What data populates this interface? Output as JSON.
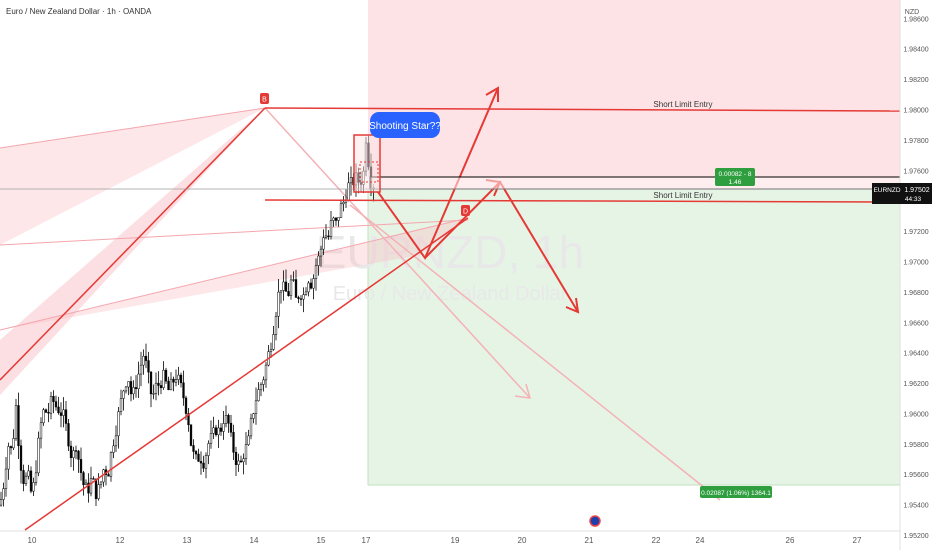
{
  "header": {
    "title": "Euro / New Zealand Dollar · 1h · OANDA"
  },
  "watermark": {
    "symbol": "EURNZD, 1h",
    "name": "Euro / New Zealand Dollar"
  },
  "price_axis": {
    "currency": "NZD",
    "current_symbol": "EURNZD",
    "current_price": "1.97502",
    "countdown": "44:33"
  },
  "annotations": {
    "callout": "Shooting Star??",
    "short_entry_top": "Short Limit Entry",
    "short_entry_bottom": "Short Limit Entry",
    "stop_line1": "0.00082 - 8",
    "stop_line2": "1.46",
    "target": "0.02087 (1.06%) 1364.1",
    "pattern_point_b": "B",
    "pattern_point_d": "D"
  },
  "colors": {
    "bull": "#000000",
    "red_line": "#e53935",
    "risk_zone": "#fde3e5",
    "reward_zone": "#e6f4e6",
    "badge_green": "#2e9e3f",
    "callout_blue": "#2962ff"
  },
  "chart_data": {
    "type": "candlestick",
    "symbol": "EURNZD",
    "timeframe": "1h",
    "y_ticks": [
      1.986,
      1.984,
      1.982,
      1.98,
      1.978,
      1.976,
      1.974,
      1.972,
      1.97,
      1.968,
      1.966,
      1.964,
      1.962,
      1.96,
      1.958,
      1.956,
      1.954,
      1.952
    ],
    "y_tick_labels": [
      "1.98600",
      "1.98400",
      "1.98200",
      "1.98000",
      "1.97800",
      "1.97600",
      "1.97400",
      "1.97200",
      "1.97000",
      "1.96800",
      "1.96600",
      "1.96400",
      "1.96200",
      "1.96000",
      "1.95800",
      "1.95600",
      "1.95400",
      "1.95200"
    ],
    "x_ticks": [
      "10",
      "12",
      "13",
      "14",
      "15",
      "17",
      "19",
      "20",
      "21",
      "22",
      "24",
      "26",
      "27"
    ],
    "ylim": [
      1.952,
      1.987
    ],
    "last_price": 1.97502,
    "levels": {
      "short_limit_entry_upper": 1.9803,
      "short_limit_entry_lower": 1.9743,
      "stop_zone_top": 1.9758,
      "stop_zone_bottom": 1.9749,
      "target": 1.9549
    },
    "price_path": [
      [
        0,
        1.954
      ],
      [
        4,
        1.9555
      ],
      [
        8,
        1.958
      ],
      [
        12,
        1.9575
      ],
      [
        16,
        1.9605
      ],
      [
        20,
        1.957
      ],
      [
        24,
        1.9555
      ],
      [
        28,
        1.956
      ],
      [
        32,
        1.9545
      ],
      [
        36,
        1.9565
      ],
      [
        40,
        1.959
      ],
      [
        44,
        1.9603
      ],
      [
        48,
        1.96
      ],
      [
        52,
        1.961
      ],
      [
        56,
        1.9605
      ],
      [
        60,
        1.9602
      ],
      [
        64,
        1.9598
      ],
      [
        68,
        1.9585
      ],
      [
        72,
        1.957
      ],
      [
        76,
        1.958
      ],
      [
        80,
        1.9565
      ],
      [
        84,
        1.9552
      ],
      [
        88,
        1.955
      ],
      [
        92,
        1.9558
      ],
      [
        96,
        1.9548
      ],
      [
        100,
        1.9552
      ],
      [
        104,
        1.9565
      ],
      [
        108,
        1.956
      ],
      [
        112,
        1.9578
      ],
      [
        116,
        1.959
      ],
      [
        120,
        1.9605
      ],
      [
        124,
        1.9618
      ],
      [
        128,
        1.9625
      ],
      [
        132,
        1.961
      ],
      [
        136,
        1.962
      ],
      [
        140,
        1.963
      ],
      [
        144,
        1.964
      ],
      [
        148,
        1.9625
      ],
      [
        152,
        1.961
      ],
      [
        156,
        1.9618
      ],
      [
        160,
        1.962
      ],
      [
        164,
        1.9625
      ],
      [
        168,
        1.9615
      ],
      [
        172,
        1.962
      ],
      [
        176,
        1.9625
      ],
      [
        180,
        1.962
      ],
      [
        184,
        1.961
      ],
      [
        188,
        1.9598
      ],
      [
        192,
        1.9575
      ],
      [
        196,
        1.957
      ],
      [
        200,
        1.9572
      ],
      [
        204,
        1.9568
      ],
      [
        208,
        1.958
      ],
      [
        212,
        1.9585
      ],
      [
        216,
        1.959
      ],
      [
        220,
        1.9588
      ],
      [
        224,
        1.9598
      ],
      [
        228,
        1.9595
      ],
      [
        232,
        1.958
      ],
      [
        236,
        1.957
      ],
      [
        240,
        1.9565
      ],
      [
        244,
        1.9575
      ],
      [
        248,
        1.958
      ],
      [
        252,
        1.9598
      ],
      [
        256,
        1.961
      ],
      [
        260,
        1.9618
      ],
      [
        264,
        1.9625
      ],
      [
        268,
        1.9638
      ],
      [
        272,
        1.965
      ],
      [
        276,
        1.9668
      ],
      [
        280,
        1.9685
      ],
      [
        284,
        1.9682
      ],
      [
        288,
        1.9678
      ],
      [
        292,
        1.969
      ],
      [
        296,
        1.9675
      ],
      [
        300,
        1.968
      ],
      [
        304,
        1.9678
      ],
      [
        308,
        1.969
      ],
      [
        312,
        1.9685
      ],
      [
        316,
        1.9698
      ],
      [
        320,
        1.9705
      ],
      [
        324,
        1.972
      ],
      [
        328,
        1.9715
      ],
      [
        332,
        1.9728
      ],
      [
        336,
        1.9725
      ],
      [
        340,
        1.9735
      ],
      [
        344,
        1.974
      ],
      [
        348,
        1.975
      ],
      [
        352,
        1.9752
      ],
      [
        356,
        1.9755
      ],
      [
        360,
        1.9752
      ],
      [
        364,
        1.976
      ],
      [
        366,
        1.9782
      ],
      [
        368,
        1.977
      ],
      [
        370,
        1.9755
      ],
      [
        372,
        1.9752
      ],
      [
        374,
        1.97502
      ]
    ]
  }
}
